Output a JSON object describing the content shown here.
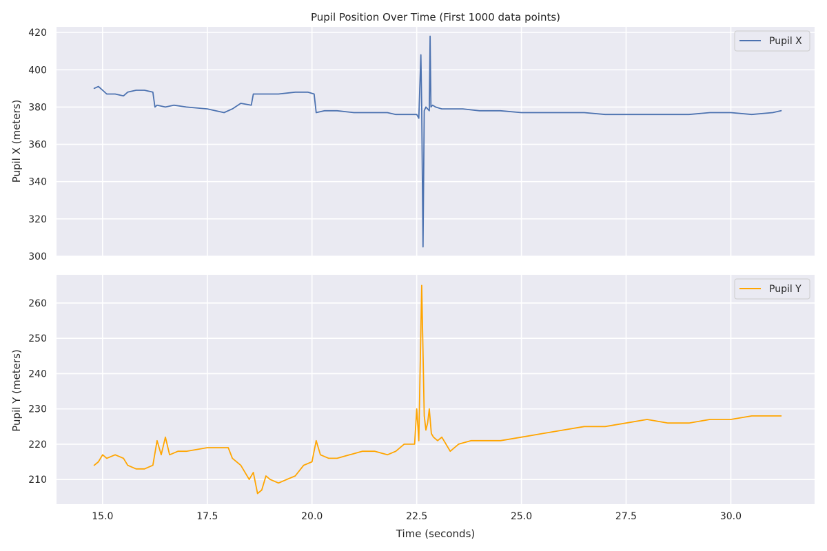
{
  "chart_data": {
    "type": "line",
    "title": "Pupil Position Over Time (First 1000 data points)",
    "xlabel": "Time (seconds)",
    "xlim": [
      13.9,
      32.0
    ],
    "xticks": [
      15.0,
      17.5,
      20.0,
      22.5,
      25.0,
      27.5,
      30.0
    ],
    "xtick_labels": [
      "15.0",
      "17.5",
      "20.0",
      "22.5",
      "25.0",
      "27.5",
      "30.0"
    ],
    "grid": true,
    "legend_position": "top-right",
    "panels": [
      {
        "ylabel": "Pupil X (meters)",
        "ylim": [
          300,
          423
        ],
        "yticks": [
          300,
          320,
          340,
          360,
          380,
          400,
          420
        ],
        "series": [
          {
            "name": "Pupil X",
            "color": "#4c72b0",
            "x": [
              14.8,
              14.9,
              15.0,
              15.1,
              15.3,
              15.5,
              15.6,
              15.8,
              16.0,
              16.2,
              16.25,
              16.3,
              16.5,
              16.7,
              17.0,
              17.5,
              17.9,
              18.1,
              18.3,
              18.55,
              18.6,
              18.8,
              19.2,
              19.6,
              19.9,
              20.05,
              20.1,
              20.3,
              20.6,
              21.0,
              21.5,
              21.8,
              22.0,
              22.3,
              22.5,
              22.55,
              22.6,
              22.62,
              22.65,
              22.68,
              22.72,
              22.76,
              22.8,
              22.82,
              22.84,
              22.88,
              22.95,
              23.1,
              23.3,
              23.6,
              24.0,
              24.5,
              25.0,
              25.5,
              26.0,
              26.5,
              27.0,
              27.5,
              28.0,
              28.5,
              29.0,
              29.5,
              30.0,
              30.5,
              31.0,
              31.2
            ],
            "values": [
              390,
              391,
              389,
              387,
              387,
              386,
              388,
              389,
              389,
              388,
              380,
              381,
              380,
              381,
              380,
              379,
              377,
              379,
              382,
              381,
              387,
              387,
              387,
              388,
              388,
              387,
              377,
              378,
              378,
              377,
              377,
              377,
              376,
              376,
              376,
              374,
              408,
              380,
              305,
              378,
              380,
              379,
              378,
              418,
              380,
              381,
              380,
              379,
              379,
              379,
              378,
              378,
              377,
              377,
              377,
              377,
              376,
              376,
              376,
              376,
              376,
              377,
              377,
              376,
              377,
              378
            ]
          }
        ]
      },
      {
        "ylabel": "Pupil Y (meters)",
        "ylim": [
          203,
          268
        ],
        "yticks": [
          210,
          220,
          230,
          240,
          250,
          260
        ],
        "series": [
          {
            "name": "Pupil Y",
            "color": "#ffa500",
            "x": [
              14.8,
              14.9,
              15.0,
              15.1,
              15.3,
              15.5,
              15.6,
              15.8,
              16.0,
              16.2,
              16.3,
              16.4,
              16.5,
              16.6,
              16.8,
              17.0,
              17.5,
              17.8,
              18.0,
              18.1,
              18.3,
              18.5,
              18.6,
              18.7,
              18.8,
              18.9,
              19.0,
              19.2,
              19.4,
              19.6,
              19.8,
              20.0,
              20.1,
              20.2,
              20.4,
              20.6,
              20.9,
              21.2,
              21.5,
              21.8,
              22.0,
              22.2,
              22.45,
              22.5,
              22.55,
              22.62,
              22.68,
              22.72,
              22.76,
              22.8,
              22.85,
              22.9,
              23.0,
              23.1,
              23.3,
              23.5,
              23.8,
              24.0,
              24.5,
              25.0,
              25.5,
              26.0,
              26.5,
              27.0,
              27.5,
              28.0,
              28.5,
              29.0,
              29.5,
              30.0,
              30.5,
              31.0,
              31.2
            ],
            "values": [
              214,
              215,
              217,
              216,
              217,
              216,
              214,
              213,
              213,
              214,
              221,
              217,
              222,
              217,
              218,
              218,
              219,
              219,
              219,
              216,
              214,
              210,
              212,
              206,
              207,
              211,
              210,
              209,
              210,
              211,
              214,
              215,
              221,
              217,
              216,
              216,
              217,
              218,
              218,
              217,
              218,
              220,
              220,
              230,
              221,
              265,
              228,
              224,
              226,
              230,
              223,
              222,
              221,
              222,
              218,
              220,
              221,
              221,
              221,
              222,
              223,
              224,
              225,
              225,
              226,
              227,
              226,
              226,
              227,
              227,
              228,
              228,
              228
            ]
          }
        ]
      }
    ]
  }
}
